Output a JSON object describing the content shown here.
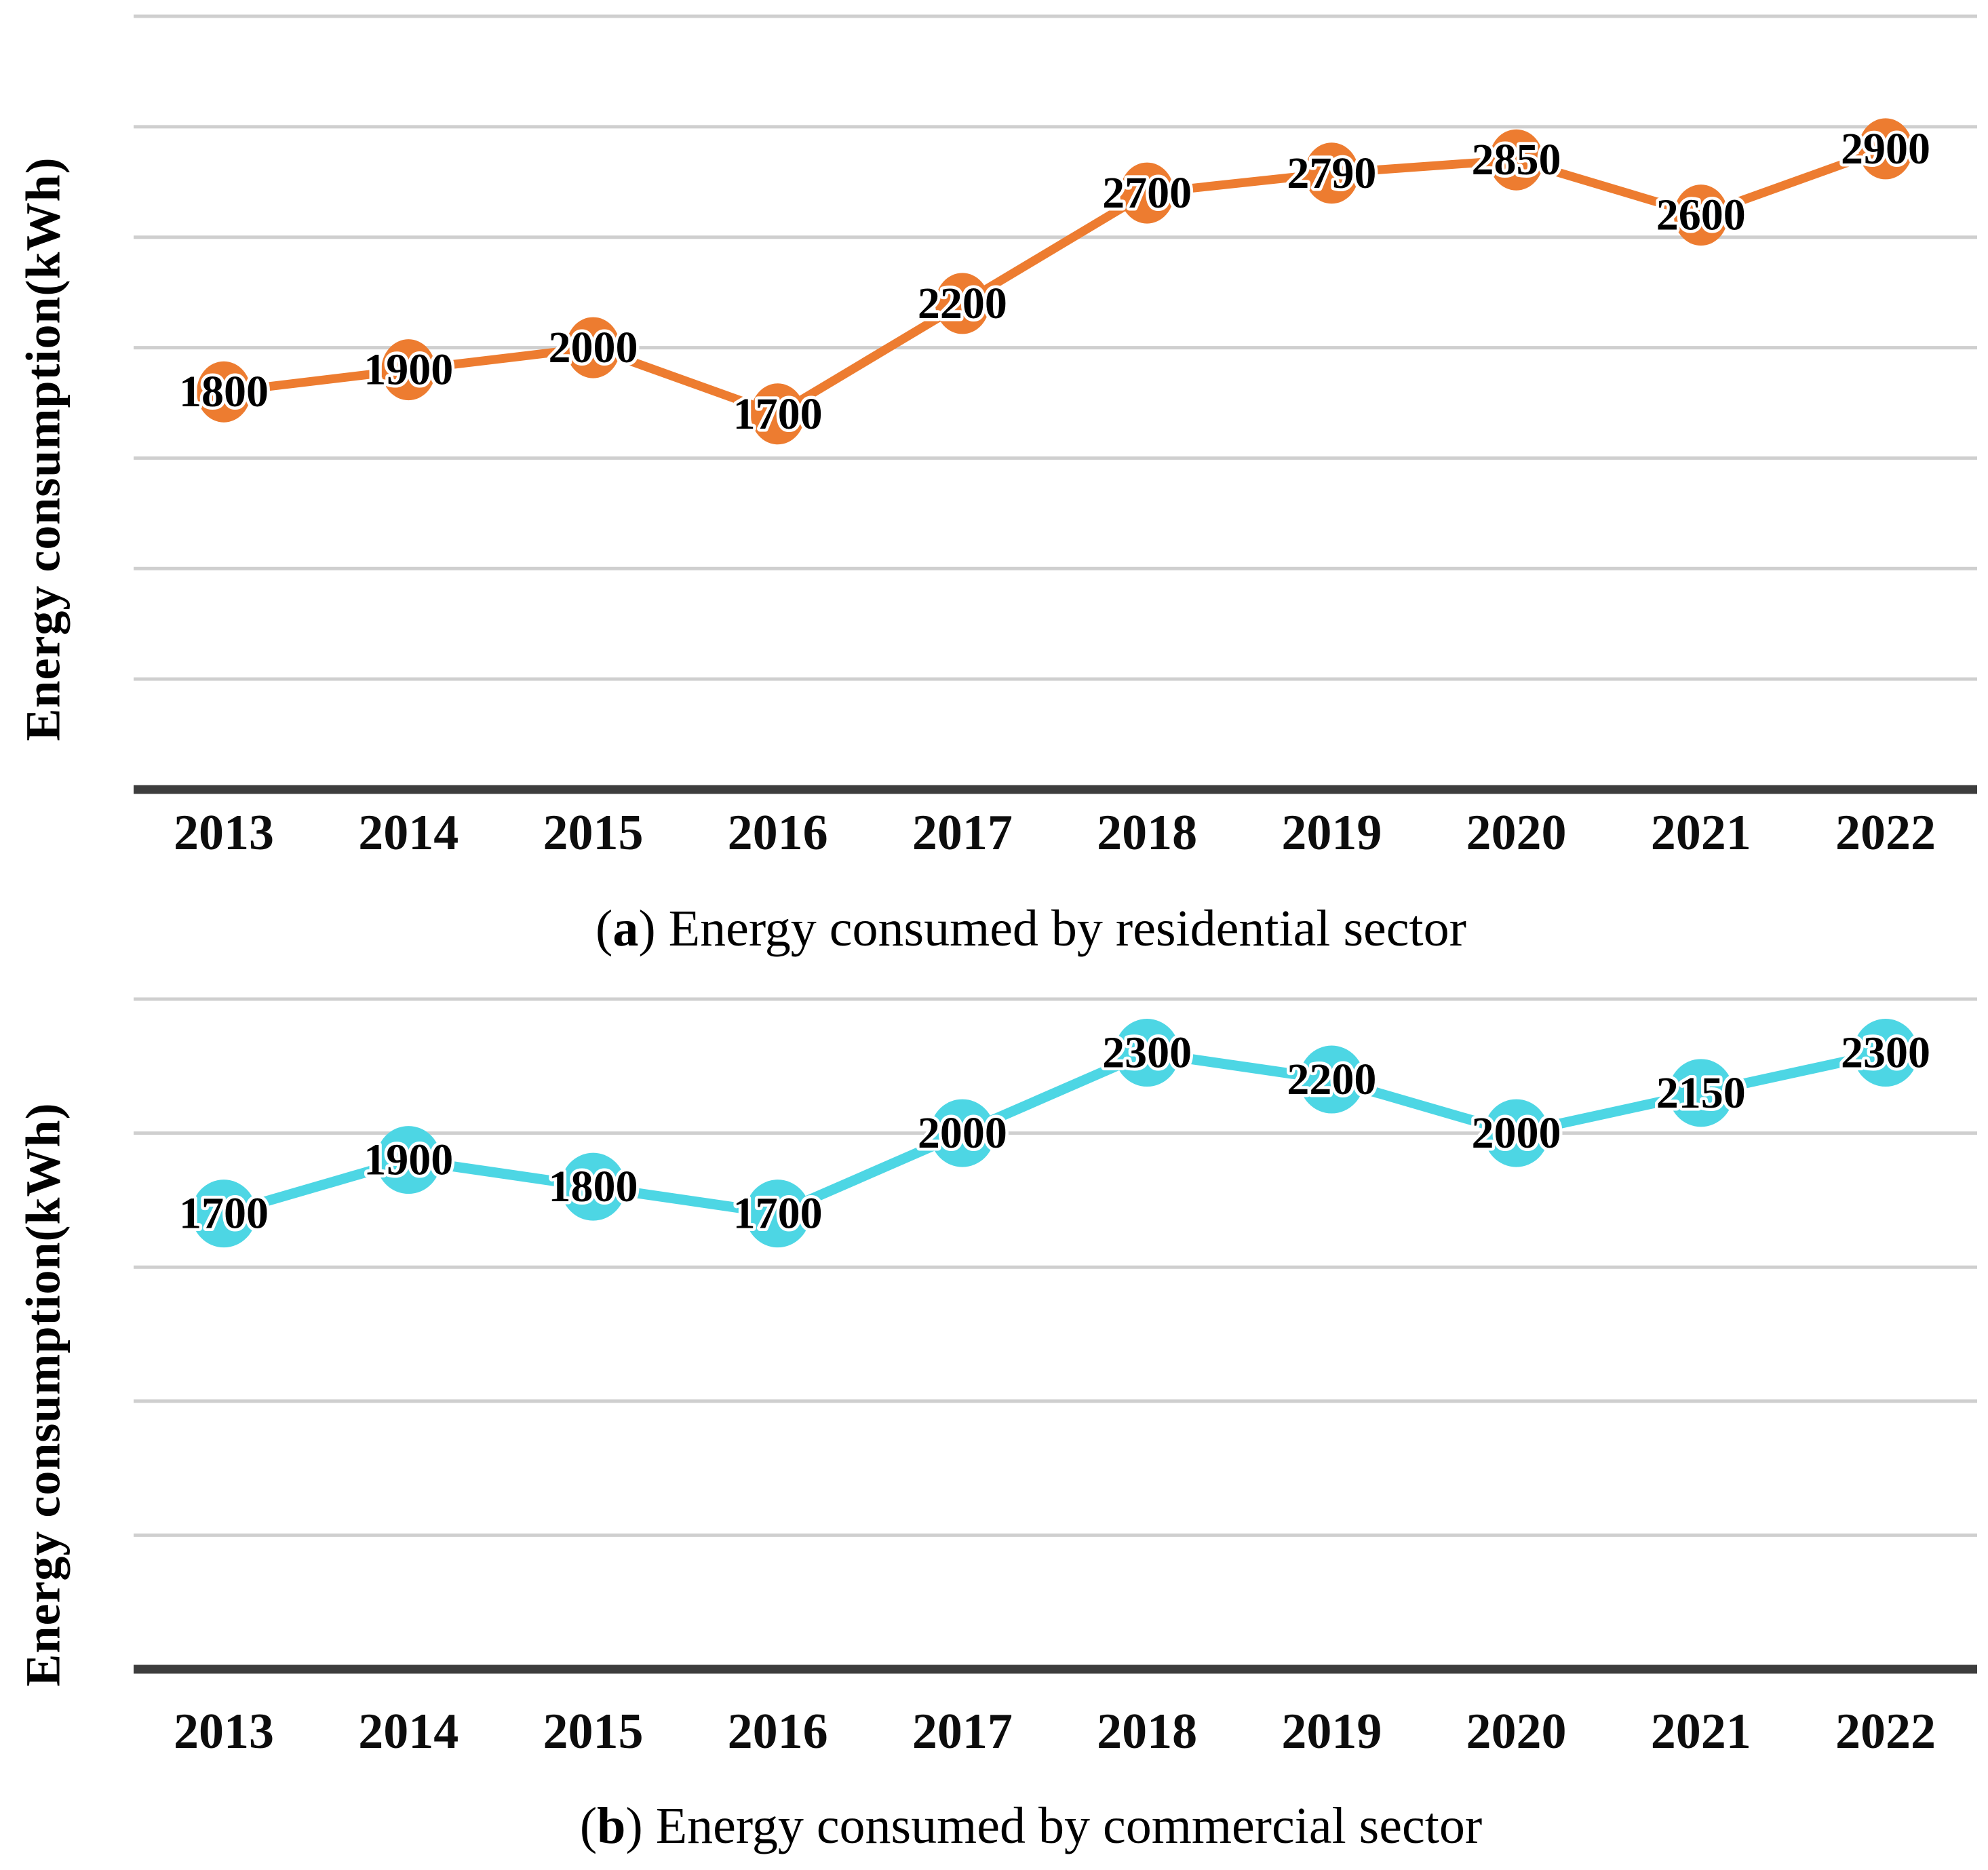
{
  "chart_data": [
    {
      "type": "line",
      "panel": "a",
      "title": "(a) Energy consumed by residential sector",
      "caption": {
        "open": "(",
        "letter": "a",
        "close": ")",
        "text": " Energy consumed by residential sector"
      },
      "ylabel": "Energy consumption(kWh)",
      "xlabel": "",
      "categories": [
        "2013",
        "2014",
        "2015",
        "2016",
        "2017",
        "2018",
        "2019",
        "2020",
        "2021",
        "2022"
      ],
      "values": [
        1800,
        1900,
        2000,
        1700,
        2200,
        2700,
        2790,
        2850,
        2600,
        2900
      ],
      "labels": [
        "1800",
        "1900",
        "2000",
        "1700",
        "2200",
        "2700",
        "2790",
        "2850",
        "2600",
        "2900"
      ],
      "ylim": [
        0,
        3500
      ],
      "grid_step": 500,
      "grid": true,
      "legend": false,
      "line_color": "#ED7C30",
      "marker_color": "#ED7C30",
      "data_label_color": "#000000",
      "data_label_halo": "#FFFFFF",
      "gridline_color": "#CFCFCF",
      "axis_color": "#3D3D3D",
      "tick_label_color": "#0D0D0D"
    },
    {
      "type": "line",
      "panel": "b",
      "title": "(b) Energy consumed by commercial sector",
      "caption": {
        "open": "(",
        "letter": "b",
        "close": ")",
        "text": " Energy consumed by commercial sector"
      },
      "ylabel": "Energy consumption(kWh)",
      "xlabel": "",
      "categories": [
        "2013",
        "2014",
        "2015",
        "2016",
        "2017",
        "2018",
        "2019",
        "2020",
        "2021",
        "2022"
      ],
      "values": [
        1700,
        1900,
        1800,
        1700,
        2000,
        2300,
        2200,
        2000,
        2150,
        2300
      ],
      "labels": [
        "1700",
        "1900",
        "1800",
        "1700",
        "2000",
        "2300",
        "2200",
        "2000",
        "2150",
        "2300"
      ],
      "ylim": [
        0,
        2500
      ],
      "grid_step": 500,
      "grid": true,
      "legend": false,
      "line_color": "#4DD6E4",
      "marker_color": "#4DD6E4",
      "data_label_color": "#000000",
      "data_label_halo": "#FFFFFF",
      "gridline_color": "#CFCFCF",
      "axis_color": "#3D3D3D",
      "tick_label_color": "#0D0D0D"
    }
  ]
}
